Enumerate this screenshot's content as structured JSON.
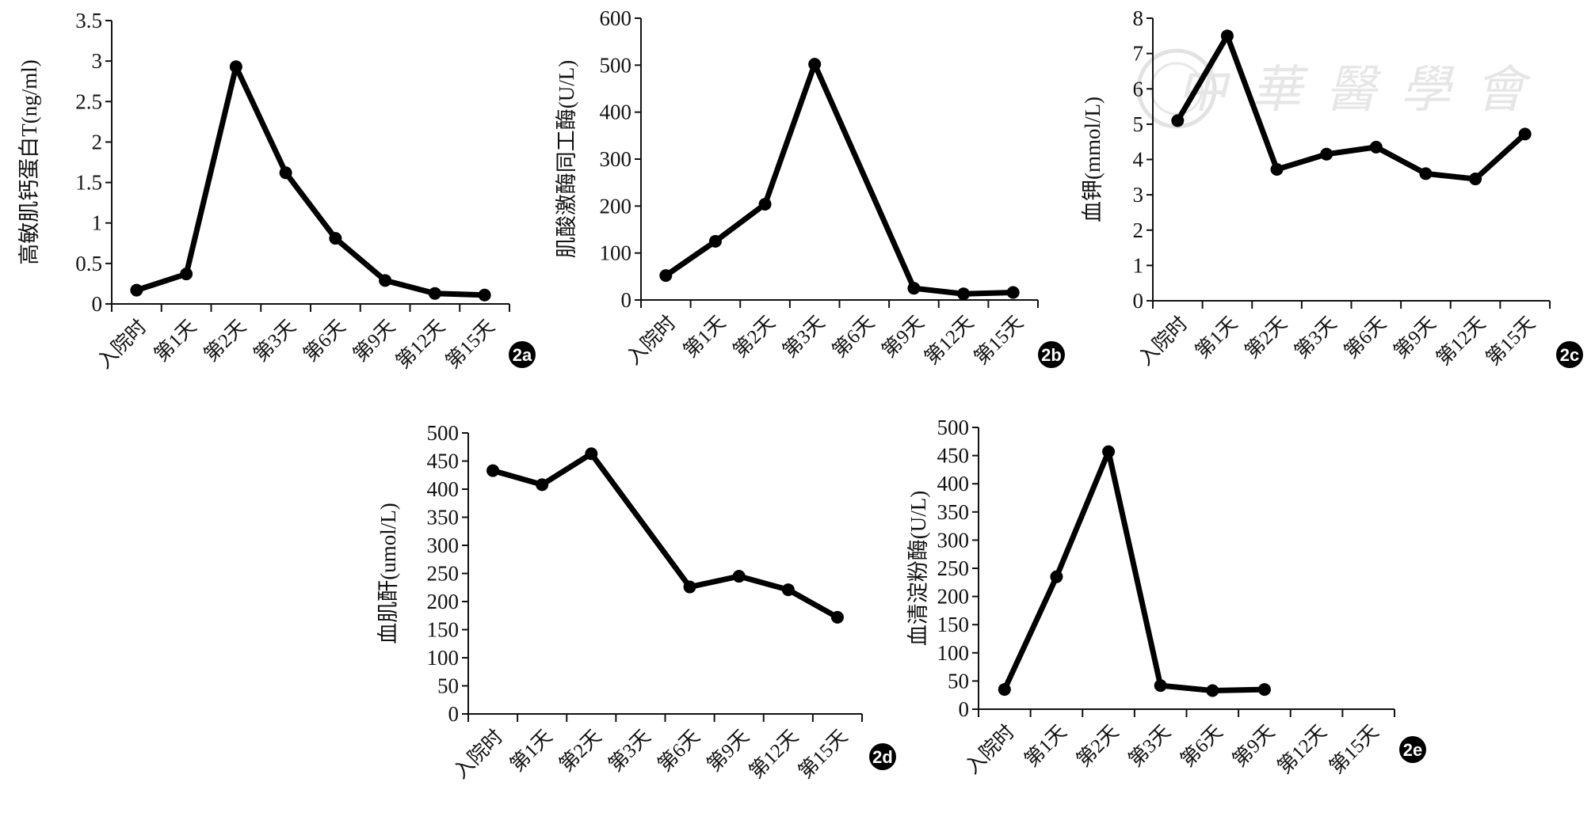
{
  "chart_data": [
    {
      "id": "2a",
      "type": "line",
      "badge": "2a",
      "ylabel": "高敏肌钙蛋白T(ng/ml)",
      "xlabel": "",
      "categories": [
        "入院时",
        "第1天",
        "第2天",
        "第3天",
        "第6天",
        "第9天",
        "第12天",
        "第15天"
      ],
      "values": [
        0.17,
        0.37,
        2.93,
        1.62,
        0.81,
        0.29,
        0.13,
        0.11
      ],
      "ylim": [
        0,
        3.5
      ],
      "yticks": [
        "0",
        "0.5",
        "1",
        "1.5",
        "2",
        "2.5",
        "3",
        "3.5"
      ],
      "grid": false
    },
    {
      "id": "2b",
      "type": "line",
      "badge": "2b",
      "ylabel": "肌酸激酶同工酶(U/L)",
      "xlabel": "",
      "categories": [
        "入院时",
        "第1天",
        "第2天",
        "第3天",
        "第6天",
        "第9天",
        "第12天",
        "第15天"
      ],
      "values": [
        52,
        125,
        204,
        502,
        null,
        25,
        13,
        16
      ],
      "ylim": [
        0,
        600
      ],
      "yticks": [
        "0",
        "100",
        "200",
        "300",
        "400",
        "500",
        "600"
      ],
      "grid": false
    },
    {
      "id": "2c",
      "type": "line",
      "badge": "2c",
      "ylabel": "血钾(mmol/L)",
      "xlabel": "",
      "categories": [
        "入院时",
        "第1天",
        "第2天",
        "第3天",
        "第6天",
        "第9天",
        "第12天",
        "第15天"
      ],
      "values": [
        5.1,
        7.5,
        3.72,
        4.15,
        4.35,
        3.6,
        3.45,
        4.72
      ],
      "ylim": [
        0,
        8
      ],
      "yticks": [
        "0",
        "1",
        "2",
        "3",
        "4",
        "5",
        "6",
        "7",
        "8"
      ],
      "grid": false
    },
    {
      "id": "2d",
      "type": "line",
      "badge": "2d",
      "ylabel": "血肌酐(umol/L)",
      "xlabel": "",
      "categories": [
        "入院时",
        "第1天",
        "第2天",
        "第3天",
        "第6天",
        "第9天",
        "第12天",
        "第15天"
      ],
      "values": [
        433,
        408,
        463,
        null,
        226,
        245,
        221,
        172
      ],
      "ylim": [
        0,
        500
      ],
      "yticks": [
        "0",
        "50",
        "100",
        "150",
        "200",
        "250",
        "300",
        "350",
        "400",
        "450",
        "500"
      ],
      "grid": false
    },
    {
      "id": "2e",
      "type": "line",
      "badge": "2e",
      "ylabel": "血清淀粉酶(U/L)",
      "xlabel": "",
      "categories": [
        "入院时",
        "第1天",
        "第2天",
        "第3天",
        "第6天",
        "第9天",
        "第12天",
        "第15天"
      ],
      "values": [
        35,
        235,
        457,
        42,
        33,
        35,
        null,
        null
      ],
      "ylim": [
        0,
        500
      ],
      "yticks": [
        "0",
        "50",
        "100",
        "150",
        "200",
        "250",
        "300",
        "350",
        "400",
        "450",
        "500"
      ],
      "grid": false
    }
  ],
  "watermark": "中華醫學會",
  "colors": {
    "line": "#000000",
    "axis": "#111111",
    "watermark": "#d6d6d6"
  }
}
